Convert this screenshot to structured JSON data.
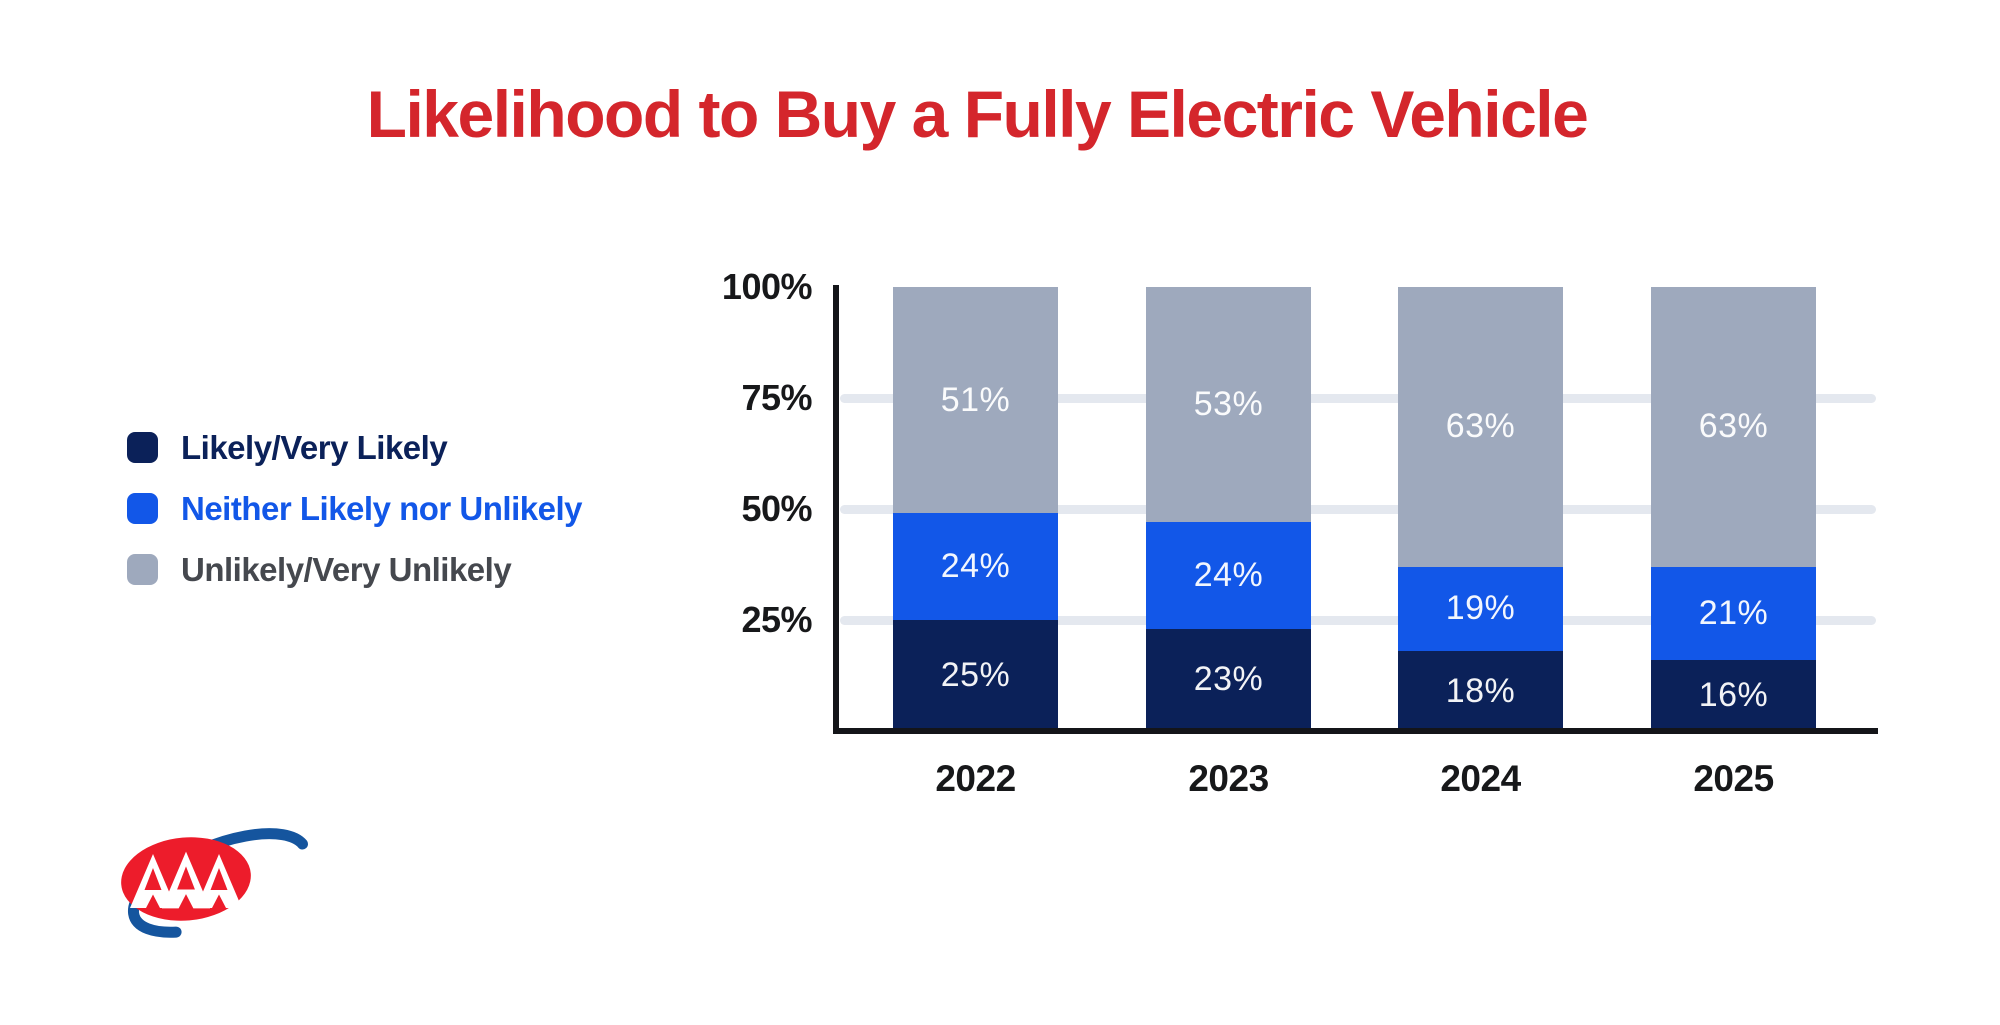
{
  "title": "Likelihood to Buy a Fully Electric Vehicle",
  "colors": {
    "title": "#d4262c",
    "axis": "#141519",
    "grid": "#e4e8ef",
    "tick_label": "#17181a",
    "value_label": "#ffffff",
    "logo_red": "#ed1c2b",
    "logo_blue": "#15559e"
  },
  "legend": {
    "items": [
      {
        "label": "Likely/Very Likely",
        "swatch_color": "#0b2159",
        "text_color": "#0b2159"
      },
      {
        "label": "Neither Likely nor Unlikely",
        "swatch_color": "#1257e8",
        "text_color": "#1257e8"
      },
      {
        "label": "Unlikely/Very Unlikely",
        "swatch_color": "#9ea9bd",
        "text_color": "#45484e"
      }
    ]
  },
  "chart_data": {
    "type": "bar",
    "stacked": true,
    "title": "Likelihood to Buy a Fully Electric Vehicle",
    "categories": [
      "2022",
      "2023",
      "2024",
      "2025"
    ],
    "series": [
      {
        "name": "Likely/Very Likely",
        "color": "#0b2159",
        "values": [
          25,
          23,
          18,
          16
        ]
      },
      {
        "name": "Neither Likely nor Unlikely",
        "color": "#1257e8",
        "values": [
          24,
          24,
          19,
          21
        ]
      },
      {
        "name": "Unlikely/Very Unlikely",
        "color": "#9ea9bd",
        "values": [
          51,
          53,
          63,
          63
        ]
      }
    ],
    "value_suffix": "%",
    "value_labels": "inside-center",
    "y_axis": {
      "min": 0,
      "max": 100,
      "ticks": [
        {
          "label": "100%",
          "value": 100
        },
        {
          "label": "75%",
          "value": 75
        },
        {
          "label": "50%",
          "value": 50
        },
        {
          "label": "25%",
          "value": 25
        }
      ]
    },
    "gridline_values": [
      75,
      50,
      25
    ],
    "grid": true,
    "legend_position": "left"
  },
  "logo": {
    "alt": "AAA logo"
  }
}
